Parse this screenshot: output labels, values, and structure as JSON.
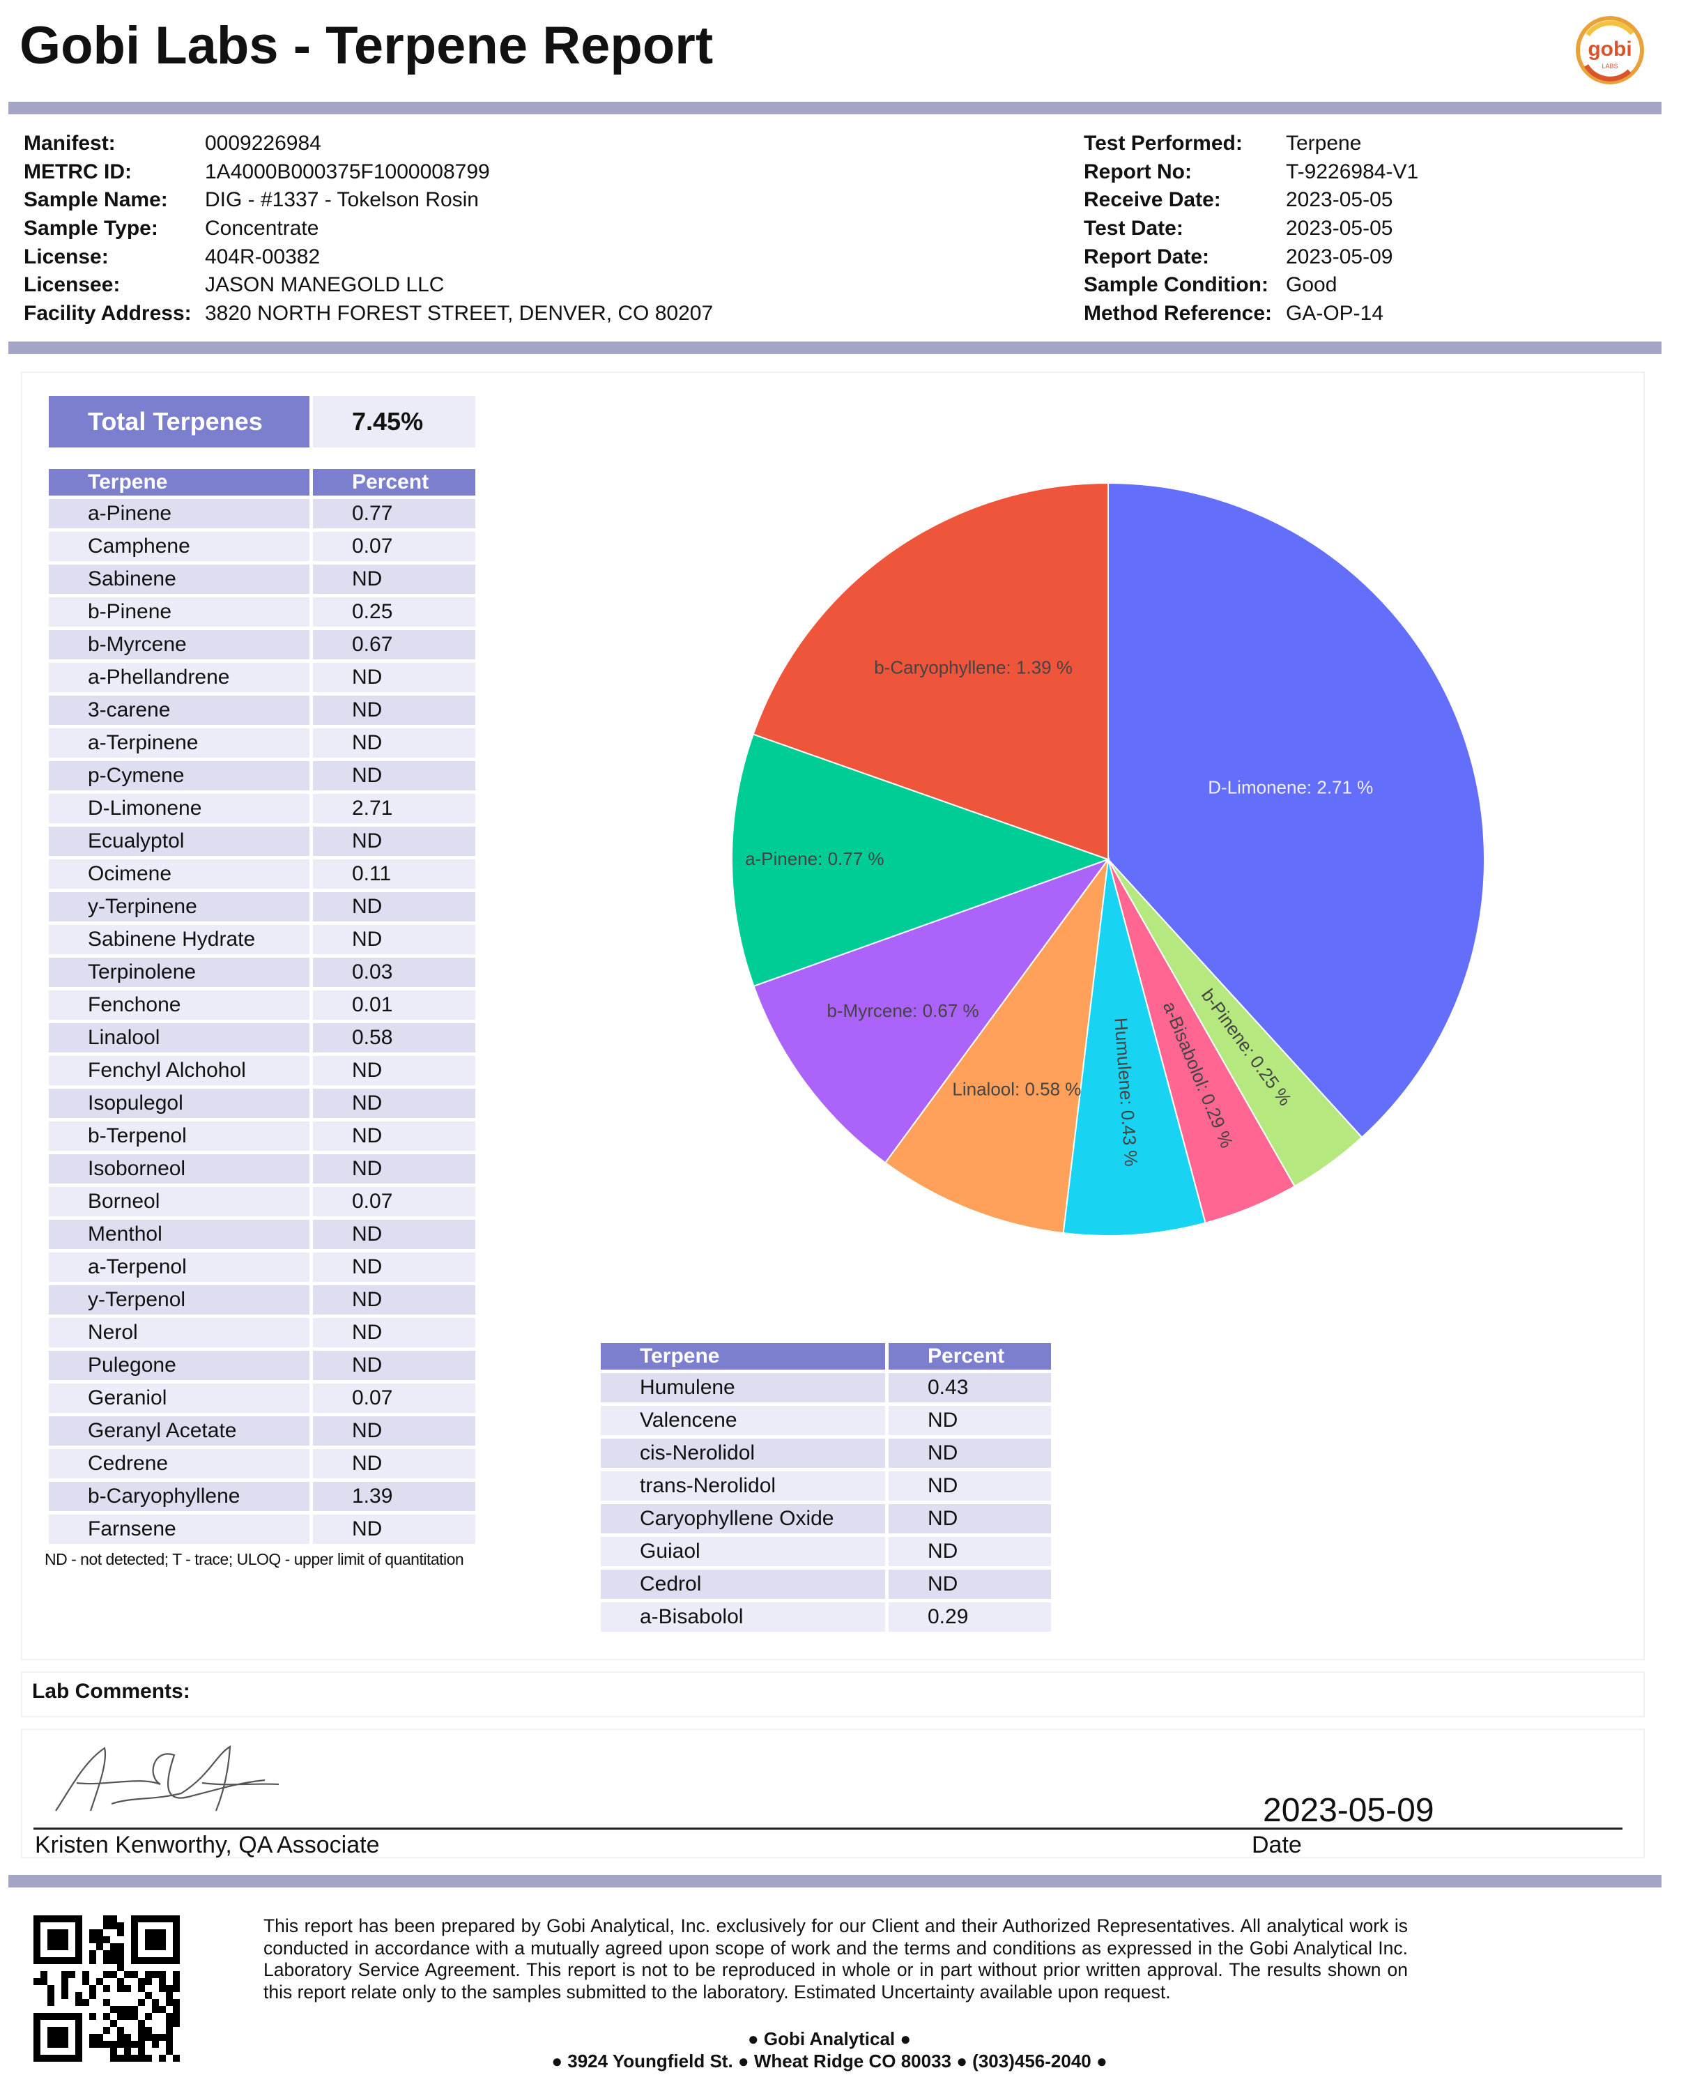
{
  "header": {
    "title": "Gobi Labs - Terpene Report",
    "logo_text": "gobi",
    "logo_sub": "LABS"
  },
  "info_left": [
    {
      "label": "Manifest:",
      "value": "0009226984"
    },
    {
      "label": "METRC ID:",
      "value": "1A4000B000375F1000008799"
    },
    {
      "label": "Sample Name:",
      "value": "DIG - #1337 - Tokelson Rosin"
    },
    {
      "label": "Sample Type:",
      "value": "Concentrate"
    },
    {
      "label": "License:",
      "value": "404R-00382"
    },
    {
      "label": "Licensee:",
      "value": "JASON MANEGOLD LLC"
    },
    {
      "label": "Facility Address:",
      "value": "3820 NORTH FOREST STREET, DENVER, CO 80207"
    }
  ],
  "info_right": [
    {
      "label": "Test Performed:",
      "value": "Terpene"
    },
    {
      "label": "Report No:",
      "value": "T-9226984-V1"
    },
    {
      "label": "Receive Date:",
      "value": "2023-05-05"
    },
    {
      "label": "Test Date:",
      "value": "2023-05-05"
    },
    {
      "label": "Report Date:",
      "value": "2023-05-09"
    },
    {
      "label": "Sample Condition:",
      "value": "Good"
    },
    {
      "label": "Method Reference:",
      "value": "GA-OP-14"
    }
  ],
  "total": {
    "label": "Total Terpenes",
    "value": "7.45%"
  },
  "table_headers": {
    "terpene": "Terpene",
    "percent": "Percent"
  },
  "table1": [
    [
      "a-Pinene",
      "0.77"
    ],
    [
      "Camphene",
      "0.07"
    ],
    [
      "Sabinene",
      "ND"
    ],
    [
      "b-Pinene",
      "0.25"
    ],
    [
      "b-Myrcene",
      "0.67"
    ],
    [
      "a-Phellandrene",
      "ND"
    ],
    [
      "3-carene",
      "ND"
    ],
    [
      "a-Terpinene",
      "ND"
    ],
    [
      "p-Cymene",
      "ND"
    ],
    [
      "D-Limonene",
      "2.71"
    ],
    [
      "Ecualyptol",
      "ND"
    ],
    [
      "Ocimene",
      "0.11"
    ],
    [
      "y-Terpinene",
      "ND"
    ],
    [
      "Sabinene Hydrate",
      "ND"
    ],
    [
      "Terpinolene",
      "0.03"
    ],
    [
      "Fenchone",
      "0.01"
    ],
    [
      "Linalool",
      "0.58"
    ],
    [
      "Fenchyl Alchohol",
      "ND"
    ],
    [
      "Isopulegol",
      "ND"
    ],
    [
      "b-Terpenol",
      "ND"
    ],
    [
      "Isoborneol",
      "ND"
    ],
    [
      "Borneol",
      "0.07"
    ],
    [
      "Menthol",
      "ND"
    ],
    [
      "a-Terpenol",
      "ND"
    ],
    [
      "y-Terpenol",
      "ND"
    ],
    [
      "Nerol",
      "ND"
    ],
    [
      "Pulegone",
      "ND"
    ],
    [
      "Geraniol",
      "0.07"
    ],
    [
      "Geranyl Acetate",
      "ND"
    ],
    [
      "Cedrene",
      "ND"
    ],
    [
      "b-Caryophyllene",
      "1.39"
    ],
    [
      "Farnsene",
      "ND"
    ]
  ],
  "table2": [
    [
      "Humulene",
      "0.43"
    ],
    [
      "Valencene",
      "ND"
    ],
    [
      "cis-Nerolidol",
      "ND"
    ],
    [
      "trans-Nerolidol",
      "ND"
    ],
    [
      "Caryophyllene Oxide",
      "ND"
    ],
    [
      "Guiaol",
      "ND"
    ],
    [
      "Cedrol",
      "ND"
    ],
    [
      "a-Bisabolol",
      "0.29"
    ]
  ],
  "footnote": "ND - not detected; T - trace; ULOQ - upper limit of quantitation",
  "chart_data": {
    "type": "pie",
    "slices": [
      {
        "label": "D-Limonene: 2.71 %",
        "name": "D-Limonene",
        "value": 2.71,
        "color": "#636efa"
      },
      {
        "label": "b-Pinene: 0.25 %",
        "name": "b-Pinene",
        "value": 0.25,
        "color": "#b6e880"
      },
      {
        "label": "a-Bisabolol: 0.29 %",
        "name": "a-Bisabolol",
        "value": 0.29,
        "color": "#ff6692"
      },
      {
        "label": "Humulene: 0.43 %",
        "name": "Humulene",
        "value": 0.43,
        "color": "#19d3f3"
      },
      {
        "label": "Linalool: 0.58 %",
        "name": "Linalool",
        "value": 0.58,
        "color": "#ffa15a"
      },
      {
        "label": "b-Myrcene: 0.67 %",
        "name": "b-Myrcene",
        "value": 0.67,
        "color": "#ab63fa"
      },
      {
        "label": "a-Pinene: 0.77 %",
        "name": "a-Pinene",
        "value": 0.77,
        "color": "#00cc96"
      },
      {
        "label": "b-Caryophyllene: 1.39 %",
        "name": "b-Caryophyllene",
        "value": 1.39,
        "color": "#ef553b"
      }
    ],
    "direction": "clockwise",
    "start": "12 o'clock",
    "legend": "none"
  },
  "comments": {
    "label": "Lab Comments:"
  },
  "signature": {
    "signer": "Kristen Kenworthy, QA Associate",
    "date": "2023-05-09",
    "date_label": "Date"
  },
  "footer": {
    "disclaimer": "This report has been prepared by Gobi Analytical, Inc. exclusively for our Client and their Authorized Representatives. All analytical work is conducted in accordance with a mutually agreed upon scope of work and the terms and conditions as expressed in the Gobi Analytical Inc. Laboratory Service Agreement. This report is not to be reproduced in whole or in part without prior written approval. The results shown on this report relate only to the samples submitted to the laboratory. Estimated Uncertainty available upon request.",
    "company": "● Gobi Analytical ●",
    "address": "● 3924 Youngfield St. ● Wheat Ridge CO 80033 ● (303)456-2040 ●"
  }
}
